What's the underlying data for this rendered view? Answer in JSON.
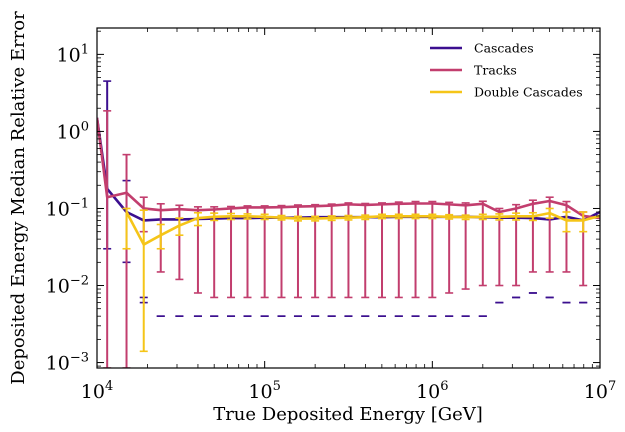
{
  "chart_data": {
    "type": "line",
    "title": "",
    "xlabel": "True Deposited Energy [GeV]",
    "ylabel": "Deposited Energy Median Relative Error",
    "x_scale": "log",
    "y_scale": "log",
    "xlim": [
      10000,
      10000000
    ],
    "ylim": [
      0.00085,
      22
    ],
    "grid": false,
    "legend_position": "top-right",
    "x_ticks": [
      {
        "value": 10000,
        "base": "10",
        "exp": "4"
      },
      {
        "value": 100000,
        "base": "10",
        "exp": "5"
      },
      {
        "value": 1000000,
        "base": "10",
        "exp": "6"
      },
      {
        "value": 10000000,
        "base": "10",
        "exp": "7"
      }
    ],
    "y_ticks": [
      {
        "value": 0.001,
        "base": "10",
        "exp": "−3"
      },
      {
        "value": 0.01,
        "base": "10",
        "exp": "−2"
      },
      {
        "value": 0.1,
        "base": "10",
        "exp": "−1"
      },
      {
        "value": 1,
        "base": "10",
        "exp": "0"
      },
      {
        "value": 10,
        "base": "10",
        "exp": "1"
      }
    ],
    "series": [
      {
        "name": "Cascades",
        "color": "#3b0f8f",
        "x": [
          10000,
          11500,
          15000,
          19000,
          24000,
          31000,
          40000,
          50000,
          63000,
          79000,
          100000,
          126000,
          158000,
          200000,
          251000,
          316000,
          398000,
          501000,
          631000,
          794000,
          1000000,
          1260000,
          1580000,
          2000000,
          2510000,
          3160000,
          3980000,
          5010000,
          6310000,
          7940000,
          10000000
        ],
        "y": [
          1.5,
          0.18,
          0.09,
          0.07,
          0.072,
          0.072,
          0.073,
          0.074,
          0.075,
          0.075,
          0.076,
          0.076,
          0.076,
          0.077,
          0.077,
          0.077,
          0.077,
          0.077,
          0.078,
          0.078,
          0.078,
          0.078,
          0.078,
          0.077,
          0.076,
          0.076,
          0.075,
          0.072,
          0.078,
          0.07,
          0.09
        ],
        "err_low": [
          null,
          0.03,
          0.02,
          0.006,
          0.004,
          0.004,
          0.004,
          0.004,
          0.004,
          0.004,
          0.004,
          0.004,
          0.004,
          0.004,
          0.004,
          0.004,
          0.004,
          0.004,
          0.004,
          0.004,
          0.004,
          0.004,
          0.004,
          0.004,
          0.006,
          0.007,
          0.008,
          0.007,
          0.006,
          0.006,
          null
        ],
        "err_high": [
          null,
          4.5,
          0.23,
          0.007,
          0.004,
          0.004,
          0.004,
          0.004,
          0.004,
          0.004,
          0.004,
          0.004,
          0.004,
          0.004,
          0.004,
          0.004,
          0.004,
          0.004,
          0.004,
          0.004,
          0.004,
          0.004,
          0.004,
          0.004,
          0.006,
          0.007,
          0.008,
          0.007,
          0.006,
          0.006,
          null
        ]
      },
      {
        "name": "Tracks",
        "color": "#c23e6e",
        "x": [
          10000,
          11500,
          15000,
          19000,
          24000,
          31000,
          40000,
          50000,
          63000,
          79000,
          100000,
          126000,
          158000,
          200000,
          251000,
          316000,
          398000,
          501000,
          631000,
          794000,
          1000000,
          1260000,
          1580000,
          2000000,
          2510000,
          3160000,
          3980000,
          5010000,
          6310000,
          7940000,
          10000000
        ],
        "y": [
          1.5,
          0.14,
          0.16,
          0.1,
          0.095,
          0.098,
          0.095,
          0.097,
          0.1,
          0.103,
          0.103,
          0.104,
          0.106,
          0.107,
          0.109,
          0.113,
          0.111,
          0.113,
          0.115,
          0.116,
          0.116,
          0.113,
          0.11,
          0.115,
          0.09,
          0.1,
          0.115,
          0.125,
          0.11,
          0.08,
          0.075
        ],
        "err_low": [
          null,
          0.0008,
          0.0008,
          0.05,
          0.015,
          0.012,
          0.008,
          0.007,
          0.007,
          0.007,
          0.007,
          0.007,
          0.007,
          0.007,
          0.007,
          0.007,
          0.007,
          0.007,
          0.007,
          0.007,
          0.007,
          0.008,
          0.009,
          0.01,
          0.01,
          0.01,
          0.015,
          0.015,
          0.015,
          0.01,
          null
        ],
        "err_high": [
          null,
          1.85,
          0.5,
          0.14,
          0.115,
          0.11,
          0.105,
          0.105,
          0.106,
          0.108,
          0.108,
          0.109,
          0.111,
          0.112,
          0.114,
          0.118,
          0.116,
          0.118,
          0.121,
          0.123,
          0.123,
          0.12,
          0.118,
          0.124,
          0.1,
          0.112,
          0.128,
          0.14,
          0.123,
          0.09,
          null
        ]
      },
      {
        "name": "Double Cascades",
        "color": "#f5c518",
        "x": [
          15000,
          19000,
          24000,
          31000,
          40000,
          50000,
          63000,
          79000,
          100000,
          126000,
          158000,
          200000,
          251000,
          316000,
          398000,
          501000,
          631000,
          794000,
          1000000,
          1260000,
          1580000,
          2000000,
          2510000,
          3160000,
          3980000,
          5010000,
          6310000,
          7940000,
          10000000
        ],
        "y": [
          0.09,
          0.034,
          0.045,
          0.06,
          0.075,
          0.078,
          0.079,
          0.079,
          0.078,
          0.076,
          0.074,
          0.074,
          0.075,
          0.076,
          0.077,
          0.079,
          0.079,
          0.079,
          0.079,
          0.078,
          0.077,
          0.078,
          0.078,
          0.079,
          0.079,
          0.087,
          0.07,
          0.07,
          0.08
        ],
        "err_low": [
          0.03,
          0.0014,
          0.03,
          0.045,
          0.06,
          0.07,
          0.072,
          0.073,
          0.072,
          0.071,
          0.069,
          0.069,
          0.07,
          0.071,
          0.072,
          0.074,
          0.074,
          0.074,
          0.074,
          0.073,
          0.072,
          0.072,
          0.071,
          0.071,
          0.07,
          0.075,
          0.05,
          0.05,
          null
        ],
        "err_high": [
          0.1,
          0.095,
          0.062,
          0.075,
          0.088,
          0.087,
          0.086,
          0.085,
          0.084,
          0.081,
          0.079,
          0.079,
          0.08,
          0.081,
          0.082,
          0.084,
          0.084,
          0.084,
          0.084,
          0.083,
          0.082,
          0.084,
          0.085,
          0.087,
          0.088,
          0.1,
          0.09,
          0.09,
          null
        ]
      }
    ]
  }
}
